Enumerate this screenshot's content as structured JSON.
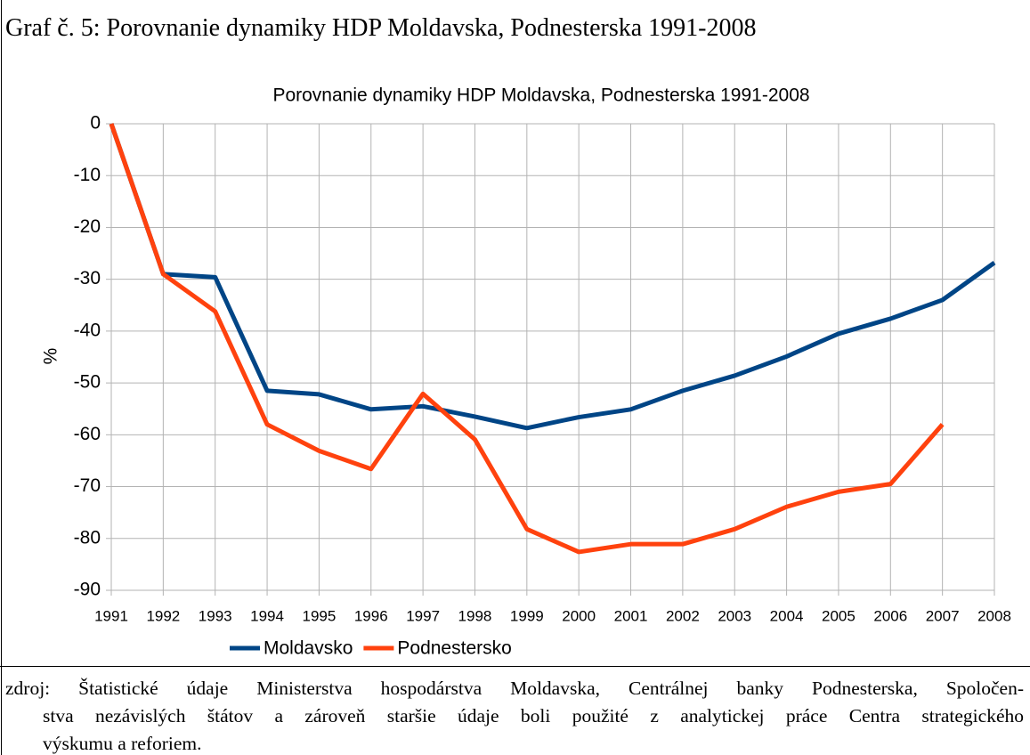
{
  "caption": "Graf č. 5: Porovnanie dynamiky HDP Moldavska, Podnesterska 1991-2008",
  "source_lines": [
    "zdroj: Štatistické údaje Ministerstva hospodárstva Moldavska, Centrálnej banky Podnesterska, Spoločen-",
    "stva nezávislých štátov a zároveň staršie údaje boli použité z analytickej práce Centra strategického",
    "výskumu a reforiem."
  ],
  "chart_data": {
    "type": "line",
    "title": "Porovnanie dynamiky HDP Moldavska, Podnesterska 1991-2008",
    "y_label": "%",
    "categories": [
      "1991",
      "1992",
      "1993",
      "1994",
      "1995",
      "1996",
      "1997",
      "1998",
      "1999",
      "2000",
      "2001",
      "2002",
      "2003",
      "2004",
      "2005",
      "2006",
      "2007",
      "2008"
    ],
    "series": [
      {
        "name": "Moldavsko",
        "color": "#004586",
        "values": [
          0,
          -29,
          -29.6,
          -51.5,
          -52.2,
          -55.1,
          -54.5,
          -56.5,
          -58.7,
          -56.6,
          -55.1,
          -51.5,
          -48.6,
          -44.9,
          -40.5,
          -37.6,
          -34,
          -26.8
        ]
      },
      {
        "name": "Podnestersko",
        "color": "#ff420e",
        "values": [
          0,
          -29,
          -36.2,
          -58,
          -63.1,
          -66.6,
          -52.1,
          -60.9,
          -78.2,
          -82.6,
          -81.1,
          -81.1,
          -78.2,
          -73.9,
          -71,
          -69.5,
          -58,
          null
        ]
      }
    ],
    "ylim": [
      -90,
      0
    ],
    "yticks": [
      0,
      -10,
      -20,
      -30,
      -40,
      -50,
      -60,
      -70,
      -80,
      -90
    ],
    "grid": true,
    "legend": "bottom"
  }
}
